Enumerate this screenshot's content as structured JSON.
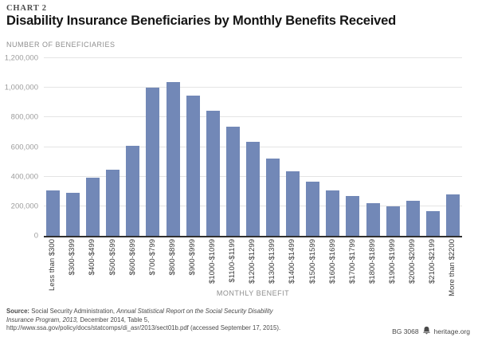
{
  "header": {
    "eyebrow": "CHART 2",
    "title": "Disability Insurance Beneficiaries by Monthly Benefits Received"
  },
  "chart_data": {
    "type": "bar",
    "title": "Disability Insurance Beneficiaries by Monthly Benefits Received",
    "ylabel": "NUMBER OF BENEFICIARIES",
    "xlabel": "MONTHLY BENEFIT",
    "ylim": [
      0,
      1200000
    ],
    "ytick_interval": 200000,
    "yticks": [
      "0",
      "200,000",
      "400,000",
      "600,000",
      "800,000",
      "1,000,000",
      "1,200,000"
    ],
    "grid": true,
    "legend": "none",
    "bar_color": "#7288b7",
    "gridline_color": "#e4e4e4",
    "axis_color": "#2f2f2f",
    "categories": [
      "Less than $300",
      "$300-$399",
      "$400-$499",
      "$500-$599",
      "$600-$699",
      "$700-$799",
      "$800-$899",
      "$900-$999",
      "$1000-$1099",
      "$1100-$1199",
      "$1200-$1299",
      "$1300-$1399",
      "$1400-$1499",
      "$1500-$1599",
      "$1600-$1699",
      "$1700-$1799",
      "$1800-$1899",
      "$1900-$1999",
      "$2000-$2099",
      "$2100-$2199",
      "More than $2200"
    ],
    "values": [
      307000,
      289000,
      394000,
      445000,
      610000,
      1002000,
      1038000,
      946000,
      843000,
      737000,
      634000,
      521000,
      437000,
      366000,
      307000,
      268000,
      221000,
      201000,
      237000,
      166000,
      279000
    ]
  },
  "footer": {
    "source_label": "Source:",
    "source_pre": " Social Security Administration, ",
    "source_italic": "Annual Statistical Report on the Social Security Disability Insurance Program, 2013,",
    "source_post": " December 2014, Table 5, http://www.ssa.gov/policy/docs/statcomps/di_asr/2013/sect01b.pdf (accessed September 17, 2015).",
    "doc_id": "BG 3068",
    "site": "heritage.org"
  }
}
